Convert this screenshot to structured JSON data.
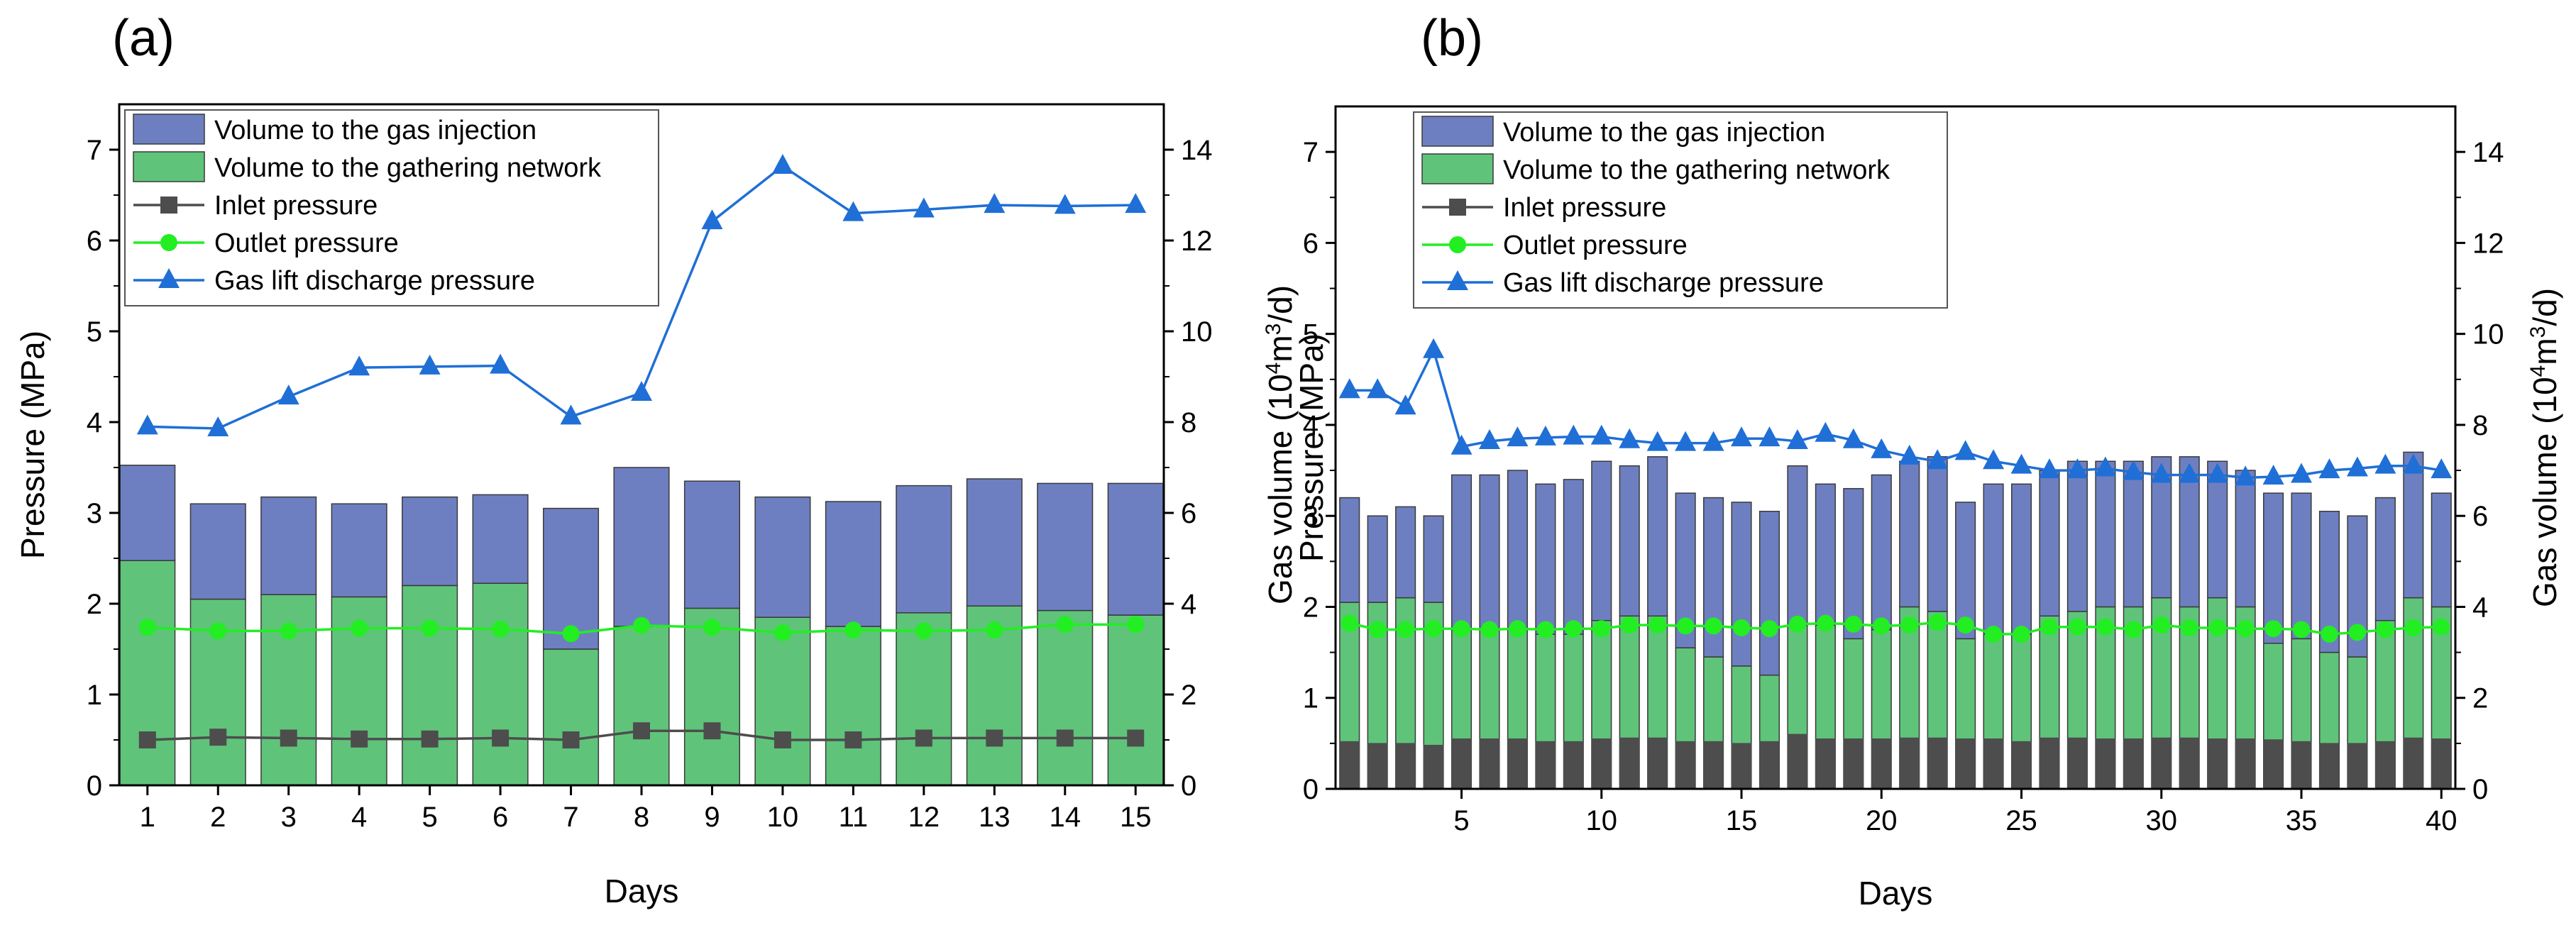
{
  "colors": {
    "injection": "#6e7fc1",
    "gathering": "#5fc47a",
    "inlet": "#4d4d4d",
    "outlet": "#22ee22",
    "discharge": "#1f6fd6",
    "bar_edge": "#3a3a3a"
  },
  "chart_data": [
    {
      "type": "bar",
      "panel_label": "(a)",
      "xlabel": "Days",
      "ylabel_left": "Pressure (MPa)",
      "ylabel_right_parts": [
        "Gas volume (10",
        "4",
        "m",
        "3",
        "/d)"
      ],
      "ylim_left": [
        0,
        7.5
      ],
      "ylim_right": [
        0,
        15
      ],
      "yticks_left": [
        0,
        1,
        2,
        3,
        4,
        5,
        6,
        7
      ],
      "yticks_right": [
        0,
        2,
        4,
        6,
        8,
        10,
        12,
        14
      ],
      "xlim": [
        0.6,
        15.4
      ],
      "xticks": [
        1,
        2,
        3,
        4,
        5,
        6,
        7,
        8,
        9,
        10,
        11,
        12,
        13,
        14,
        15
      ],
      "x": [
        1,
        2,
        3,
        4,
        5,
        6,
        7,
        8,
        9,
        10,
        11,
        12,
        13,
        14,
        15
      ],
      "legend": {
        "position": "top-left",
        "entries": [
          {
            "label": "Volume to the gas injection",
            "kind": "bar",
            "color_key": "injection"
          },
          {
            "label": "Volume to the gathering network",
            "kind": "bar",
            "color_key": "gathering"
          },
          {
            "label": "Inlet pressure",
            "kind": "line",
            "marker": "square",
            "color_key": "inlet"
          },
          {
            "label": "Outlet pressure",
            "kind": "line",
            "marker": "circle",
            "color_key": "outlet"
          },
          {
            "label": "Gas lift discharge pressure",
            "kind": "line",
            "marker": "triangle",
            "color_key": "discharge"
          }
        ]
      },
      "bar_series": [
        {
          "name": "Volume to the gathering network",
          "axis": "right",
          "values": [
            4.95,
            4.1,
            4.2,
            4.15,
            4.4,
            4.45,
            3.0,
            3.5,
            3.9,
            3.7,
            3.5,
            3.8,
            3.95,
            3.85,
            3.75
          ]
        },
        {
          "name": "Volume to the gas injection",
          "axis": "right",
          "values": [
            2.1,
            2.1,
            2.15,
            2.05,
            1.95,
            1.95,
            3.1,
            3.5,
            2.8,
            2.65,
            2.75,
            2.8,
            2.8,
            2.8,
            2.9
          ]
        }
      ],
      "line_series": [
        {
          "name": "Inlet pressure",
          "axis": "left",
          "values": [
            0.5,
            0.53,
            0.52,
            0.51,
            0.51,
            0.52,
            0.5,
            0.6,
            0.6,
            0.5,
            0.5,
            0.52,
            0.52,
            0.52,
            0.52
          ]
        },
        {
          "name": "Outlet pressure",
          "axis": "left",
          "values": [
            1.74,
            1.7,
            1.7,
            1.73,
            1.73,
            1.72,
            1.67,
            1.76,
            1.74,
            1.68,
            1.71,
            1.7,
            1.71,
            1.77,
            1.77
          ]
        },
        {
          "name": "Gas lift discharge pressure",
          "axis": "left",
          "values": [
            3.95,
            3.93,
            4.28,
            4.6,
            4.61,
            4.62,
            4.06,
            4.32,
            6.21,
            6.82,
            6.3,
            6.34,
            6.39,
            6.38,
            6.39
          ]
        }
      ]
    },
    {
      "type": "bar",
      "panel_label": "(b)",
      "xlabel": "Days",
      "ylabel_left": "Pressure (MPa)",
      "ylabel_right_parts": [
        "Gas volume (10",
        "4",
        "m",
        "3",
        "/d)"
      ],
      "ylim_left": [
        0,
        7.5
      ],
      "ylim_right": [
        0,
        15
      ],
      "yticks_left": [
        0,
        1,
        2,
        3,
        4,
        5,
        6,
        7
      ],
      "yticks_right": [
        0,
        2,
        4,
        6,
        8,
        10,
        12,
        14
      ],
      "xlim": [
        0.5,
        40.5
      ],
      "xticks": [
        5,
        10,
        15,
        20,
        25,
        30,
        35,
        40
      ],
      "x": [
        1,
        2,
        3,
        4,
        5,
        6,
        7,
        8,
        9,
        10,
        11,
        12,
        13,
        14,
        15,
        16,
        17,
        18,
        19,
        20,
        21,
        22,
        23,
        24,
        25,
        26,
        27,
        28,
        29,
        30,
        31,
        32,
        33,
        34,
        35,
        36,
        37,
        38,
        39,
        40
      ],
      "legend": {
        "position": "top-left",
        "entries": [
          {
            "label": "Volume to the gas injection",
            "kind": "bar",
            "color_key": "injection"
          },
          {
            "label": "Volume to the gathering network",
            "kind": "bar",
            "color_key": "gathering"
          },
          {
            "label": "Inlet pressure",
            "kind": "line",
            "marker": "square",
            "color_key": "inlet"
          },
          {
            "label": "Outlet pressure",
            "kind": "line",
            "marker": "circle",
            "color_key": "outlet"
          },
          {
            "label": "Gas lift discharge pressure",
            "kind": "line",
            "marker": "triangle",
            "color_key": "discharge"
          }
        ]
      },
      "bar_series": [
        {
          "name": "Volume to the gathering network",
          "axis": "right",
          "values": [
            4.1,
            4.1,
            4.2,
            4.1,
            3.5,
            3.5,
            3.5,
            3.4,
            3.4,
            3.7,
            3.8,
            3.8,
            3.1,
            2.9,
            2.7,
            2.5,
            3.6,
            3.6,
            3.3,
            3.5,
            4.0,
            3.9,
            3.3,
            3.4,
            3.4,
            3.8,
            3.9,
            4.0,
            4.0,
            4.2,
            4.0,
            4.2,
            4.0,
            3.2,
            3.3,
            3.0,
            2.9,
            3.7,
            4.2,
            4.0
          ]
        },
        {
          "name": "Volume to the gas injection",
          "axis": "right",
          "values": [
            2.3,
            1.9,
            2.0,
            1.9,
            3.4,
            3.4,
            3.5,
            3.3,
            3.4,
            3.5,
            3.3,
            3.5,
            3.4,
            3.5,
            3.6,
            3.6,
            3.5,
            3.1,
            3.3,
            3.4,
            3.2,
            3.4,
            3.0,
            3.3,
            3.3,
            3.2,
            3.3,
            3.2,
            3.2,
            3.1,
            3.3,
            3.0,
            3.0,
            3.3,
            3.2,
            3.1,
            3.1,
            2.7,
            3.2,
            2.5
          ]
        },
        {
          "name": "Inlet pressure",
          "axis": "left",
          "values": [
            0.52,
            0.5,
            0.5,
            0.48,
            0.55,
            0.55,
            0.55,
            0.52,
            0.52,
            0.55,
            0.56,
            0.56,
            0.52,
            0.52,
            0.5,
            0.52,
            0.6,
            0.55,
            0.55,
            0.55,
            0.56,
            0.56,
            0.55,
            0.55,
            0.52,
            0.56,
            0.56,
            0.55,
            0.55,
            0.56,
            0.56,
            0.55,
            0.55,
            0.54,
            0.52,
            0.5,
            0.5,
            0.52,
            0.56,
            0.55
          ]
        }
      ],
      "line_series": [
        {
          "name": "Outlet pressure",
          "axis": "left",
          "values": [
            1.82,
            1.75,
            1.75,
            1.76,
            1.76,
            1.75,
            1.76,
            1.75,
            1.76,
            1.76,
            1.8,
            1.8,
            1.79,
            1.79,
            1.77,
            1.76,
            1.81,
            1.82,
            1.81,
            1.79,
            1.8,
            1.83,
            1.8,
            1.7,
            1.7,
            1.78,
            1.78,
            1.78,
            1.75,
            1.8,
            1.77,
            1.77,
            1.76,
            1.76,
            1.75,
            1.7,
            1.72,
            1.75,
            1.77,
            1.78
          ]
        },
        {
          "name": "Gas lift discharge pressure",
          "axis": "left",
          "values": [
            4.38,
            4.38,
            4.2,
            4.82,
            3.76,
            3.82,
            3.85,
            3.86,
            3.87,
            3.87,
            3.83,
            3.8,
            3.8,
            3.8,
            3.85,
            3.85,
            3.82,
            3.9,
            3.83,
            3.72,
            3.65,
            3.6,
            3.7,
            3.6,
            3.55,
            3.5,
            3.5,
            3.52,
            3.48,
            3.45,
            3.45,
            3.45,
            3.42,
            3.43,
            3.45,
            3.5,
            3.52,
            3.55,
            3.55,
            3.5
          ]
        }
      ]
    }
  ]
}
